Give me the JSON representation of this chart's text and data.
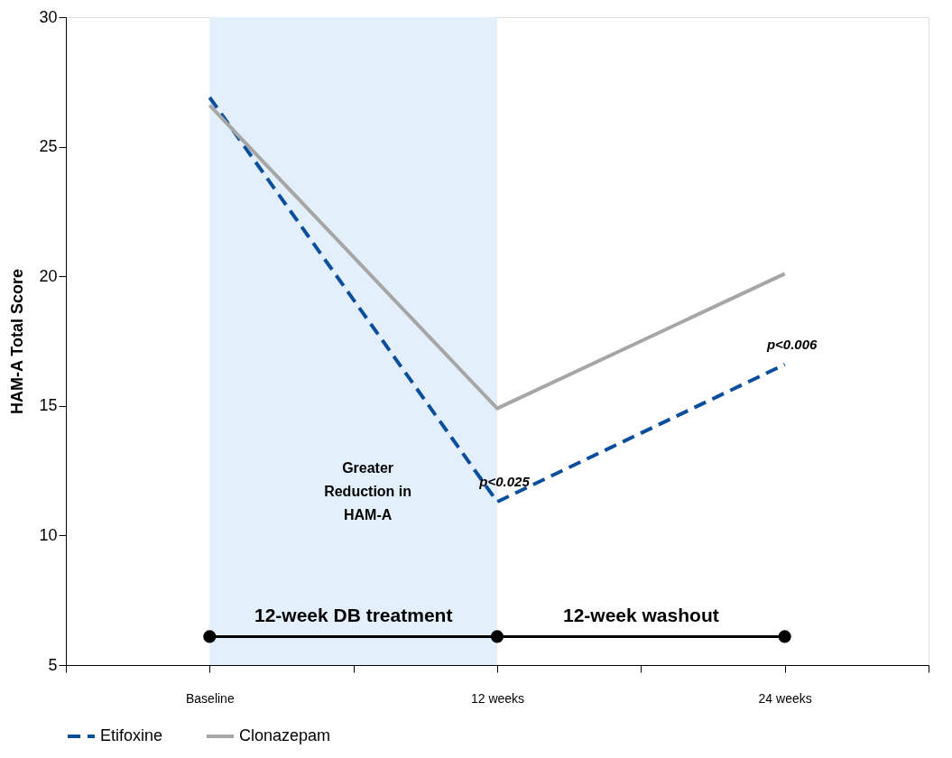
{
  "chart_data": {
    "type": "line",
    "ylabel": "HAM-A Total Score",
    "x": [
      0,
      12,
      24
    ],
    "series": [
      {
        "name": "Etifoxine",
        "color": "#0b4f9c",
        "values": [
          26.9,
          11.3,
          16.6
        ],
        "line_style": "dashed"
      },
      {
        "name": "Clonazepam",
        "color": "#a6a6a6",
        "values": [
          26.6,
          14.9,
          20.1
        ],
        "line_style": "solid"
      },
      {
        "color": "#000000",
        "values": [
          6.1,
          6.1,
          6.1
        ],
        "line_style": "solid",
        "marker": "circle"
      }
    ],
    "xlim": [
      -6,
      30
    ],
    "xticks": [
      {
        "value": -6,
        "label": null
      },
      {
        "value": 0,
        "label": "Baseline"
      },
      {
        "value": 6,
        "label": null
      },
      {
        "value": 12,
        "label": "12 weeks"
      },
      {
        "value": 18,
        "label": null
      },
      {
        "value": 24,
        "label": "24 weeks"
      },
      {
        "value": 30,
        "label": null
      }
    ],
    "ylim": [
      5,
      30
    ],
    "yticks": [
      5,
      10,
      15,
      20,
      25,
      30
    ],
    "bands": [
      {
        "axis": "x",
        "from": 0,
        "to": 12,
        "color": "#e3f0fc"
      }
    ],
    "annotations": [
      {
        "text": "p<0.025",
        "x": 12,
        "y": 11.3
      },
      {
        "text": "p<0.006",
        "x": 24,
        "y": 16.6
      },
      "12-week DB treatment",
      "12-week washout",
      "Greater Reduction in HAM-A"
    ],
    "grid": false,
    "legend": "bottom",
    "marker": "none"
  }
}
